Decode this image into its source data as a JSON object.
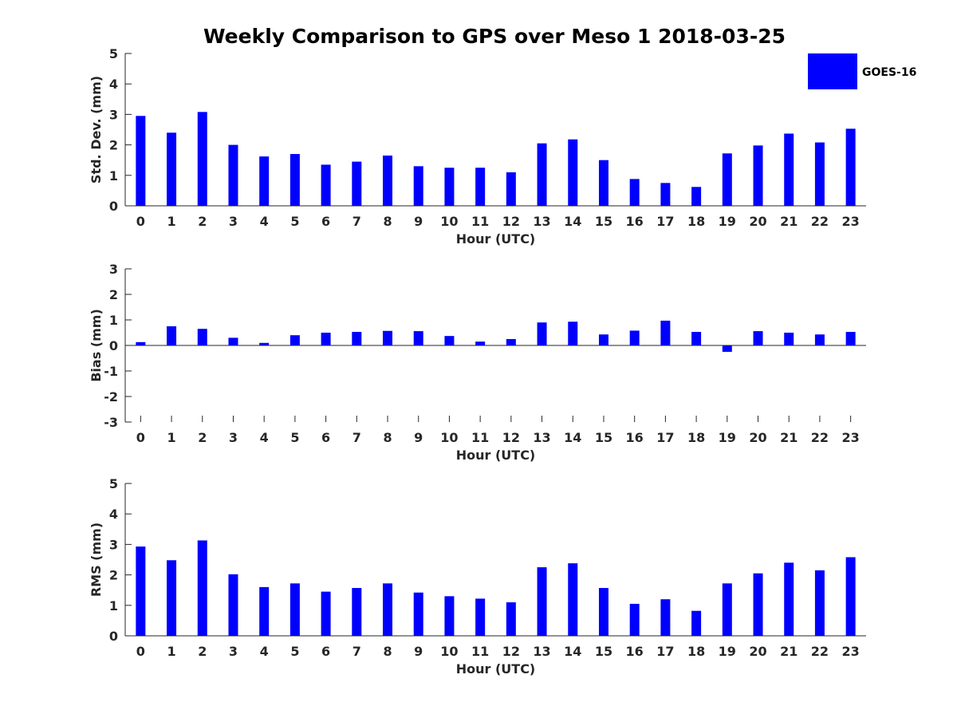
{
  "title": "Weekly Comparison to GPS over Meso 1 2018-03-25",
  "legend": {
    "label": "GOES-16",
    "color": "#0000ff",
    "placement": "top-right"
  },
  "chart_data": [
    {
      "type": "bar",
      "ylabel": "Std. Dev. (mm)",
      "xlabel": "Hour (UTC)",
      "ylim": [
        0,
        5
      ],
      "yticks": [
        "0",
        "1",
        "2",
        "3",
        "4",
        "5"
      ],
      "categories": [
        "0",
        "1",
        "2",
        "3",
        "4",
        "5",
        "6",
        "7",
        "8",
        "9",
        "10",
        "11",
        "12",
        "13",
        "14",
        "15",
        "16",
        "17",
        "18",
        "19",
        "20",
        "21",
        "22",
        "23"
      ],
      "series": [
        {
          "name": "GOES-16",
          "values": [
            2.95,
            2.4,
            3.08,
            2.0,
            1.62,
            1.7,
            1.35,
            1.45,
            1.65,
            1.3,
            1.25,
            1.25,
            1.1,
            2.05,
            2.18,
            1.5,
            0.88,
            0.75,
            0.62,
            1.72,
            1.98,
            2.37,
            2.08,
            2.53
          ]
        }
      ]
    },
    {
      "type": "bar",
      "ylabel": "Bias (mm)",
      "xlabel": "Hour (UTC)",
      "ylim": [
        -3,
        3
      ],
      "yticks": [
        "-3",
        "-2",
        "-1",
        "0",
        "1",
        "2",
        "3"
      ],
      "categories": [
        "0",
        "1",
        "2",
        "3",
        "4",
        "5",
        "6",
        "7",
        "8",
        "9",
        "10",
        "11",
        "12",
        "13",
        "14",
        "15",
        "16",
        "17",
        "18",
        "19",
        "20",
        "21",
        "22",
        "23"
      ],
      "series": [
        {
          "name": "GOES-16",
          "values": [
            0.13,
            0.75,
            0.65,
            0.3,
            0.1,
            0.4,
            0.5,
            0.53,
            0.57,
            0.56,
            0.37,
            0.15,
            0.25,
            0.9,
            0.93,
            0.43,
            0.58,
            0.97,
            0.53,
            -0.25,
            0.56,
            0.5,
            0.43,
            0.53
          ]
        }
      ]
    },
    {
      "type": "bar",
      "ylabel": "RMS (mm)",
      "xlabel": "Hour (UTC)",
      "ylim": [
        0,
        5
      ],
      "yticks": [
        "0",
        "1",
        "2",
        "3",
        "4",
        "5"
      ],
      "categories": [
        "0",
        "1",
        "2",
        "3",
        "4",
        "5",
        "6",
        "7",
        "8",
        "9",
        "10",
        "11",
        "12",
        "13",
        "14",
        "15",
        "16",
        "17",
        "18",
        "19",
        "20",
        "21",
        "22",
        "23"
      ],
      "series": [
        {
          "name": "GOES-16",
          "values": [
            2.93,
            2.48,
            3.13,
            2.02,
            1.6,
            1.72,
            1.45,
            1.57,
            1.72,
            1.42,
            1.3,
            1.22,
            1.1,
            2.25,
            2.38,
            1.57,
            1.05,
            1.2,
            0.82,
            1.72,
            2.05,
            2.4,
            2.15,
            2.58
          ]
        }
      ]
    }
  ]
}
